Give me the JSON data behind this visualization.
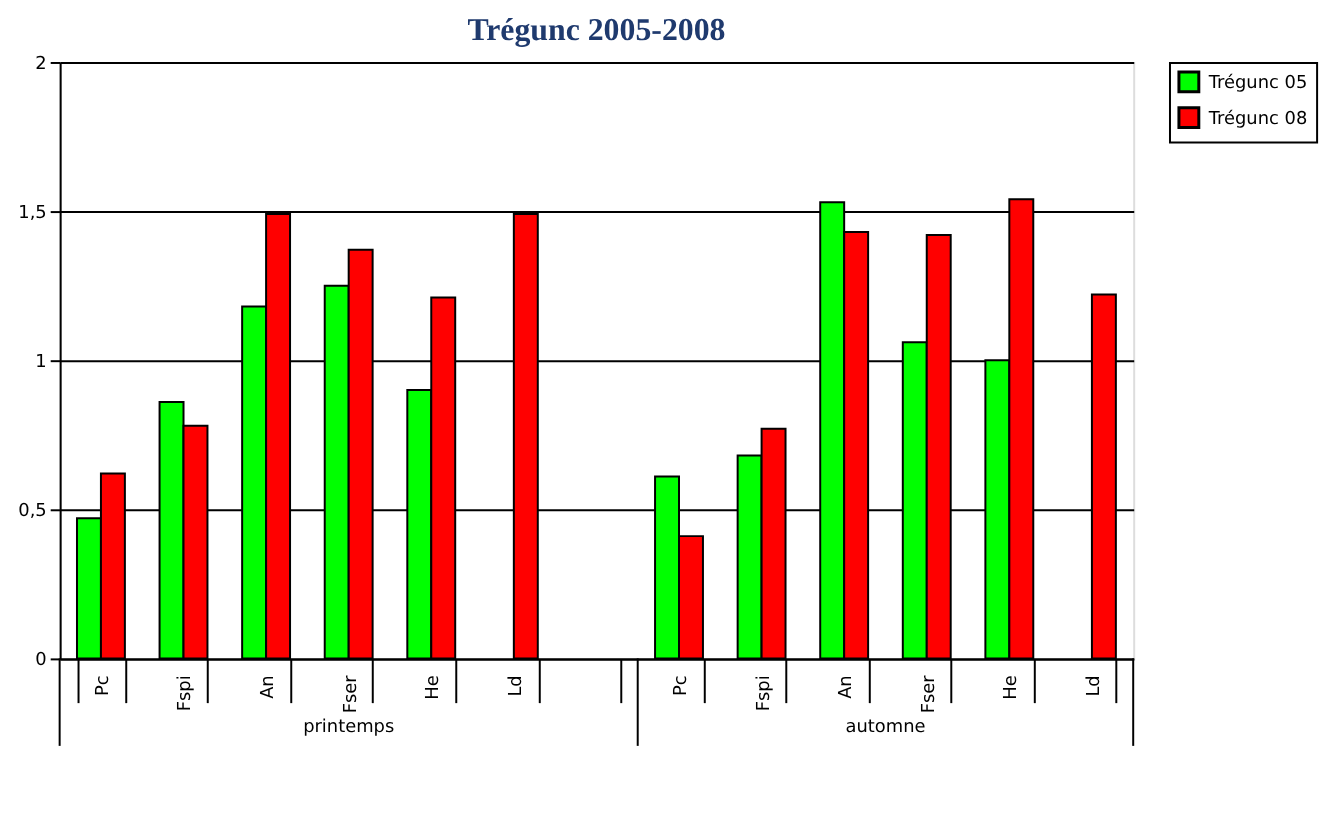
{
  "chart_data": {
    "type": "bar",
    "title": "Trégunc 2005-2008",
    "categories": [
      "Pc",
      "Fspi",
      "An",
      "Fser",
      "He",
      "Ld",
      null,
      "Pc",
      "Fspi",
      "An",
      "Fser",
      "He",
      "Ld"
    ],
    "series": [
      {
        "name": "Trégunc 05",
        "color": "#00ff00",
        "values": [
          0.47,
          0.86,
          1.18,
          1.25,
          0.9,
          null,
          null,
          0.61,
          0.68,
          1.53,
          1.06,
          1.0,
          null
        ]
      },
      {
        "name": "Trégunc 08",
        "color": "#ff0000",
        "values": [
          0.62,
          0.78,
          1.49,
          1.37,
          1.21,
          1.49,
          null,
          0.41,
          0.77,
          1.43,
          1.42,
          1.54,
          1.22
        ]
      }
    ],
    "ylim": [
      0,
      2
    ],
    "yticks": [
      0,
      {
        "value": 0.5,
        "label": "0,5"
      },
      1,
      {
        "value": 1.5,
        "label": "1,5"
      },
      2
    ],
    "grid": "y",
    "legend": "right",
    "annotations": [
      "printemps",
      "automne"
    ]
  }
}
